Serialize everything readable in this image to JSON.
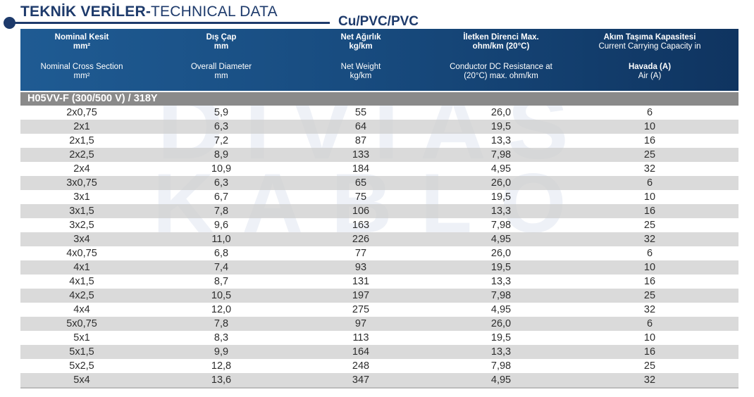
{
  "header_title": {
    "bold": "TEKNİK VERİLER-",
    "normal": "TECHNICAL DATA"
  },
  "subtitle": "Cu/PVC/PVC",
  "columns": [
    {
      "tr1": "Nominal Kesit",
      "tr2": "mm²",
      "en1": "Nominal Cross Section",
      "en2": "mm²"
    },
    {
      "tr1": "Dış Çap",
      "tr2": "mm",
      "en1": "Overall Diameter",
      "en2": "mm"
    },
    {
      "tr1": "Net Ağırlık",
      "tr2": "kg/km",
      "en1": "Net Weight",
      "en2": "kg/km"
    },
    {
      "tr1": "İletken Direnci Max.",
      "tr2": "ohm/km (20°C)",
      "en1": "Conductor DC Resistance at",
      "en2": "(20°C) max. ohm/km"
    },
    {
      "tr1": "Akım Taşıma Kapasitesi",
      "tr2": "Current Carrying Capacity in",
      "en1": "Havada (A)",
      "en2": "Air (A)"
    }
  ],
  "group_label": "H05VV-F (300/500 V) / 318Y",
  "rows": [
    [
      "2x0,75",
      "5,9",
      "55",
      "26,0",
      "6"
    ],
    [
      "2x1",
      "6,3",
      "64",
      "19,5",
      "10"
    ],
    [
      "2x1,5",
      "7,2",
      "87",
      "13,3",
      "16"
    ],
    [
      "2x2,5",
      "8,9",
      "133",
      "7,98",
      "25"
    ],
    [
      "2x4",
      "10,9",
      "184",
      "4,95",
      "32"
    ],
    [
      "3x0,75",
      "6,3",
      "65",
      "26,0",
      "6"
    ],
    [
      "3x1",
      "6,7",
      "75",
      "19,5",
      "10"
    ],
    [
      "3x1,5",
      "7,8",
      "106",
      "13,3",
      "16"
    ],
    [
      "3x2,5",
      "9,6",
      "163",
      "7,98",
      "25"
    ],
    [
      "3x4",
      "11,0",
      "226",
      "4,95",
      "32"
    ],
    [
      "4x0,75",
      "6,8",
      "77",
      "26,0",
      "6"
    ],
    [
      "4x1",
      "7,4",
      "93",
      "19,5",
      "10"
    ],
    [
      "4x1,5",
      "8,7",
      "131",
      "13,3",
      "16"
    ],
    [
      "4x2,5",
      "10,5",
      "197",
      "7,98",
      "25"
    ],
    [
      "4x4",
      "12,0",
      "275",
      "4,95",
      "32"
    ],
    [
      "5x0,75",
      "7,8",
      "97",
      "26,0",
      "6"
    ],
    [
      "5x1",
      "8,3",
      "113",
      "19,5",
      "10"
    ],
    [
      "5x1,5",
      "9,9",
      "164",
      "13,3",
      "16"
    ],
    [
      "5x2,5",
      "12,8",
      "248",
      "7,98",
      "25"
    ],
    [
      "5x4",
      "13,6",
      "347",
      "4,95",
      "32"
    ]
  ],
  "watermark": {
    "line1": "DIVIAS",
    "line2": "KABLO"
  },
  "colors": {
    "header_bg": "#1a4f85",
    "title": "#1d3a6b",
    "group_bg": "#8a8a8a",
    "stripe": "#d0d0d0"
  }
}
